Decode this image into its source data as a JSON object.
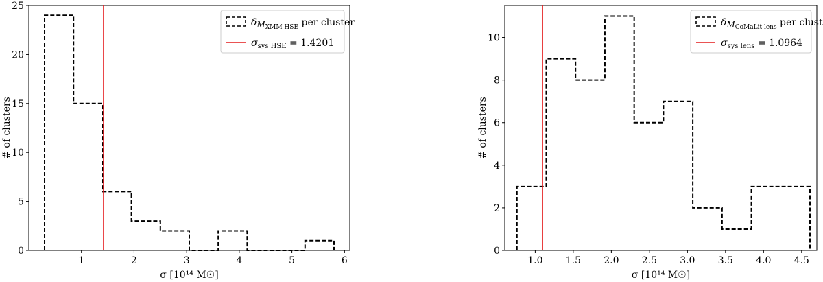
{
  "chart_data": [
    {
      "type": "histogram",
      "xlabel": "σ [10¹⁴ M☉]",
      "ylabel": "# of clusters",
      "xlim": [
        0.0,
        6.1
      ],
      "ylim": [
        0,
        25
      ],
      "xticks": [
        1,
        2,
        3,
        4,
        5,
        6
      ],
      "yticks": [
        0,
        5,
        10,
        15,
        20,
        25
      ],
      "legend_position": "top-right",
      "series": [
        {
          "name": "δM_XMM HSE per cluster",
          "style": "dashed-step",
          "color": "#000000",
          "bin_edges": [
            0.3,
            0.85,
            1.4,
            1.95,
            2.5,
            3.05,
            3.6,
            4.15,
            4.7,
            5.25,
            5.8
          ],
          "counts": [
            24,
            15,
            6,
            3,
            2,
            0,
            2,
            0,
            0,
            1
          ]
        }
      ],
      "vline": {
        "name": "σsys HSE = 1.4201",
        "x": 1.4201,
        "color": "#e41a1c"
      },
      "legend": [
        {
          "main": "δ",
          "italic": "M",
          "sub": "XMM HSE",
          "rest": " per cluster"
        },
        {
          "main": "σ",
          "sub": "sys HSE",
          "rest": " = 1.4201"
        }
      ]
    },
    {
      "type": "histogram",
      "xlabel": "σ [10¹⁴ M☉]",
      "ylabel": "# of clusters",
      "xlim": [
        0.6,
        4.7
      ],
      "ylim": [
        0,
        11.5
      ],
      "xticks": [
        "1.0",
        "1.5",
        "2.0",
        "2.5",
        "3.0",
        "3.5",
        "4.0",
        "4.5"
      ],
      "yticks": [
        0,
        2,
        4,
        6,
        8,
        10
      ],
      "legend_position": "top-right",
      "series": [
        {
          "name": "δM_CoMaLit lens per cluster",
          "style": "dashed-step",
          "color": "#000000",
          "bin_edges": [
            0.76,
            1.145,
            1.53,
            1.915,
            2.3,
            2.685,
            3.07,
            3.455,
            3.84,
            4.225,
            4.61
          ],
          "counts": [
            3,
            9,
            8,
            11,
            6,
            7,
            2,
            1,
            3,
            3
          ]
        }
      ],
      "vline": {
        "name": "σsys lens = 1.0964",
        "x": 1.0964,
        "color": "#e41a1c"
      },
      "legend": [
        {
          "main": "δ",
          "italic": "M",
          "sub": "CoMaLit lens",
          "rest": " per cluster"
        },
        {
          "main": "σ",
          "sub": "sys lens",
          "rest": " = 1.0964"
        }
      ]
    }
  ]
}
